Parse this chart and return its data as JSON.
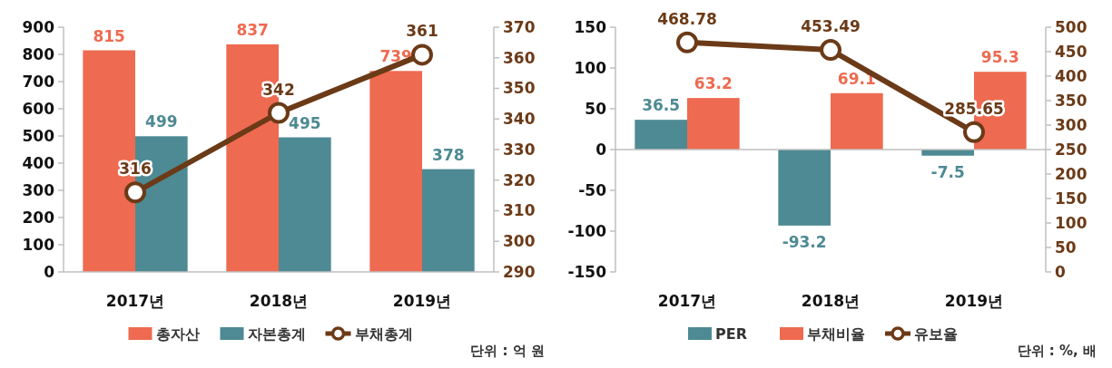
{
  "chart_data": [
    {
      "type": "bar",
      "categories": [
        "2017년",
        "2018년",
        "2019년"
      ],
      "series": [
        {
          "name": "총자산",
          "color": "#ee6a50",
          "values": [
            815,
            837,
            739
          ]
        },
        {
          "name": "자본총계",
          "color": "#4e8a93",
          "values": [
            499,
            495,
            378
          ]
        },
        {
          "name": "부채총계",
          "type": "line",
          "axis": "y2",
          "color": "#6b3a17",
          "values": [
            316,
            342,
            361
          ]
        }
      ],
      "ylim": [
        0,
        900
      ],
      "yticks": [
        0,
        100,
        200,
        300,
        400,
        500,
        600,
        700,
        800,
        900
      ],
      "y2lim": [
        290,
        370
      ],
      "y2ticks": [
        290,
        300,
        310,
        320,
        330,
        340,
        350,
        360,
        370
      ],
      "data_labels": true,
      "marker": "circle",
      "legend": "bottom",
      "annotations": [
        "단위 : 억 원"
      ]
    },
    {
      "type": "bar",
      "categories": [
        "2017년",
        "2018년",
        "2019년"
      ],
      "series": [
        {
          "name": "PER",
          "color": "#4e8a93",
          "values": [
            36.5,
            -93.2,
            -7.5
          ]
        },
        {
          "name": "부채비율",
          "color": "#ee6a50",
          "values": [
            63.2,
            69.1,
            95.3
          ]
        },
        {
          "name": "유보율",
          "type": "line",
          "axis": "y2",
          "color": "#6b3a17",
          "values": [
            468.78,
            453.49,
            285.65
          ]
        }
      ],
      "ylim": [
        -150,
        150
      ],
      "yticks": [
        -150,
        -100,
        -50,
        0,
        50,
        100,
        150
      ],
      "y2lim": [
        0,
        500
      ],
      "y2ticks": [
        0,
        50,
        100,
        150,
        200,
        250,
        300,
        350,
        400,
        450,
        500
      ],
      "data_labels": true,
      "marker": "circle",
      "legend": "bottom",
      "annotations": [
        "단위 : %, 배"
      ]
    }
  ]
}
